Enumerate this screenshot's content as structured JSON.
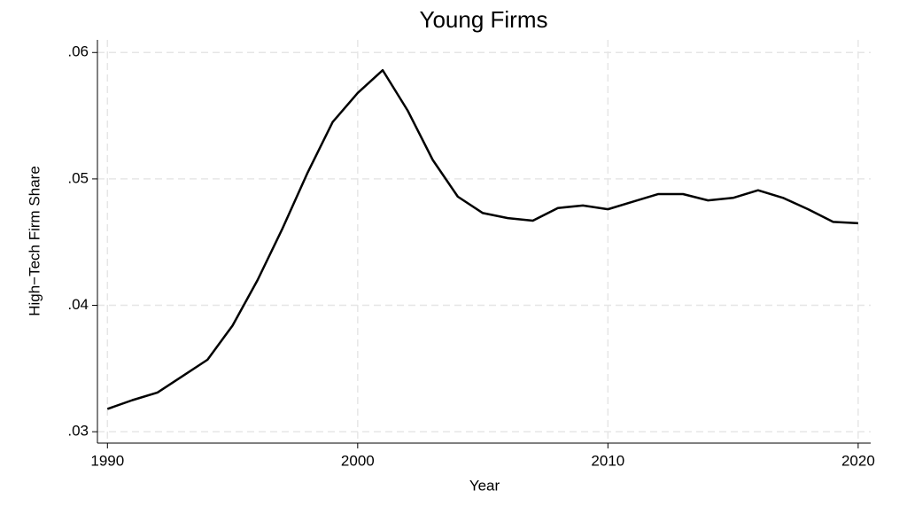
{
  "chart_data": {
    "type": "line",
    "title": "Young Firms",
    "x_label": "Year",
    "y_label": "High−Tech Firm Share",
    "x": [
      1990,
      1991,
      1992,
      1993,
      1994,
      1995,
      1996,
      1997,
      1998,
      1999,
      2000,
      2001,
      2002,
      2003,
      2004,
      2005,
      2006,
      2007,
      2008,
      2009,
      2010,
      2011,
      2012,
      2013,
      2014,
      2015,
      2016,
      2017,
      2018,
      2019,
      2020
    ],
    "series": [
      {
        "name": "High−Tech Firm Share",
        "color": "#000000",
        "values": [
          0.0318,
          0.0325,
          0.0331,
          0.0344,
          0.0357,
          0.0384,
          0.042,
          0.0461,
          0.0505,
          0.0545,
          0.0568,
          0.0586,
          0.0554,
          0.0515,
          0.0486,
          0.0473,
          0.0469,
          0.0467,
          0.0477,
          0.0479,
          0.0476,
          0.0482,
          0.0488,
          0.0488,
          0.0483,
          0.0485,
          0.0491,
          0.0485,
          0.0476,
          0.0466,
          0.0465
        ]
      }
    ],
    "xlim": [
      1989.6,
      2020.5
    ],
    "ylim": [
      0.0291,
      0.061
    ],
    "xticks": [
      1990,
      2000,
      2010,
      2020
    ],
    "yticks": [
      {
        "value": 0.03,
        "label": ".03"
      },
      {
        "value": 0.04,
        "label": ".04"
      },
      {
        "value": 0.05,
        "label": ".05"
      },
      {
        "value": 0.06,
        "label": ".06"
      }
    ],
    "grid": true
  }
}
